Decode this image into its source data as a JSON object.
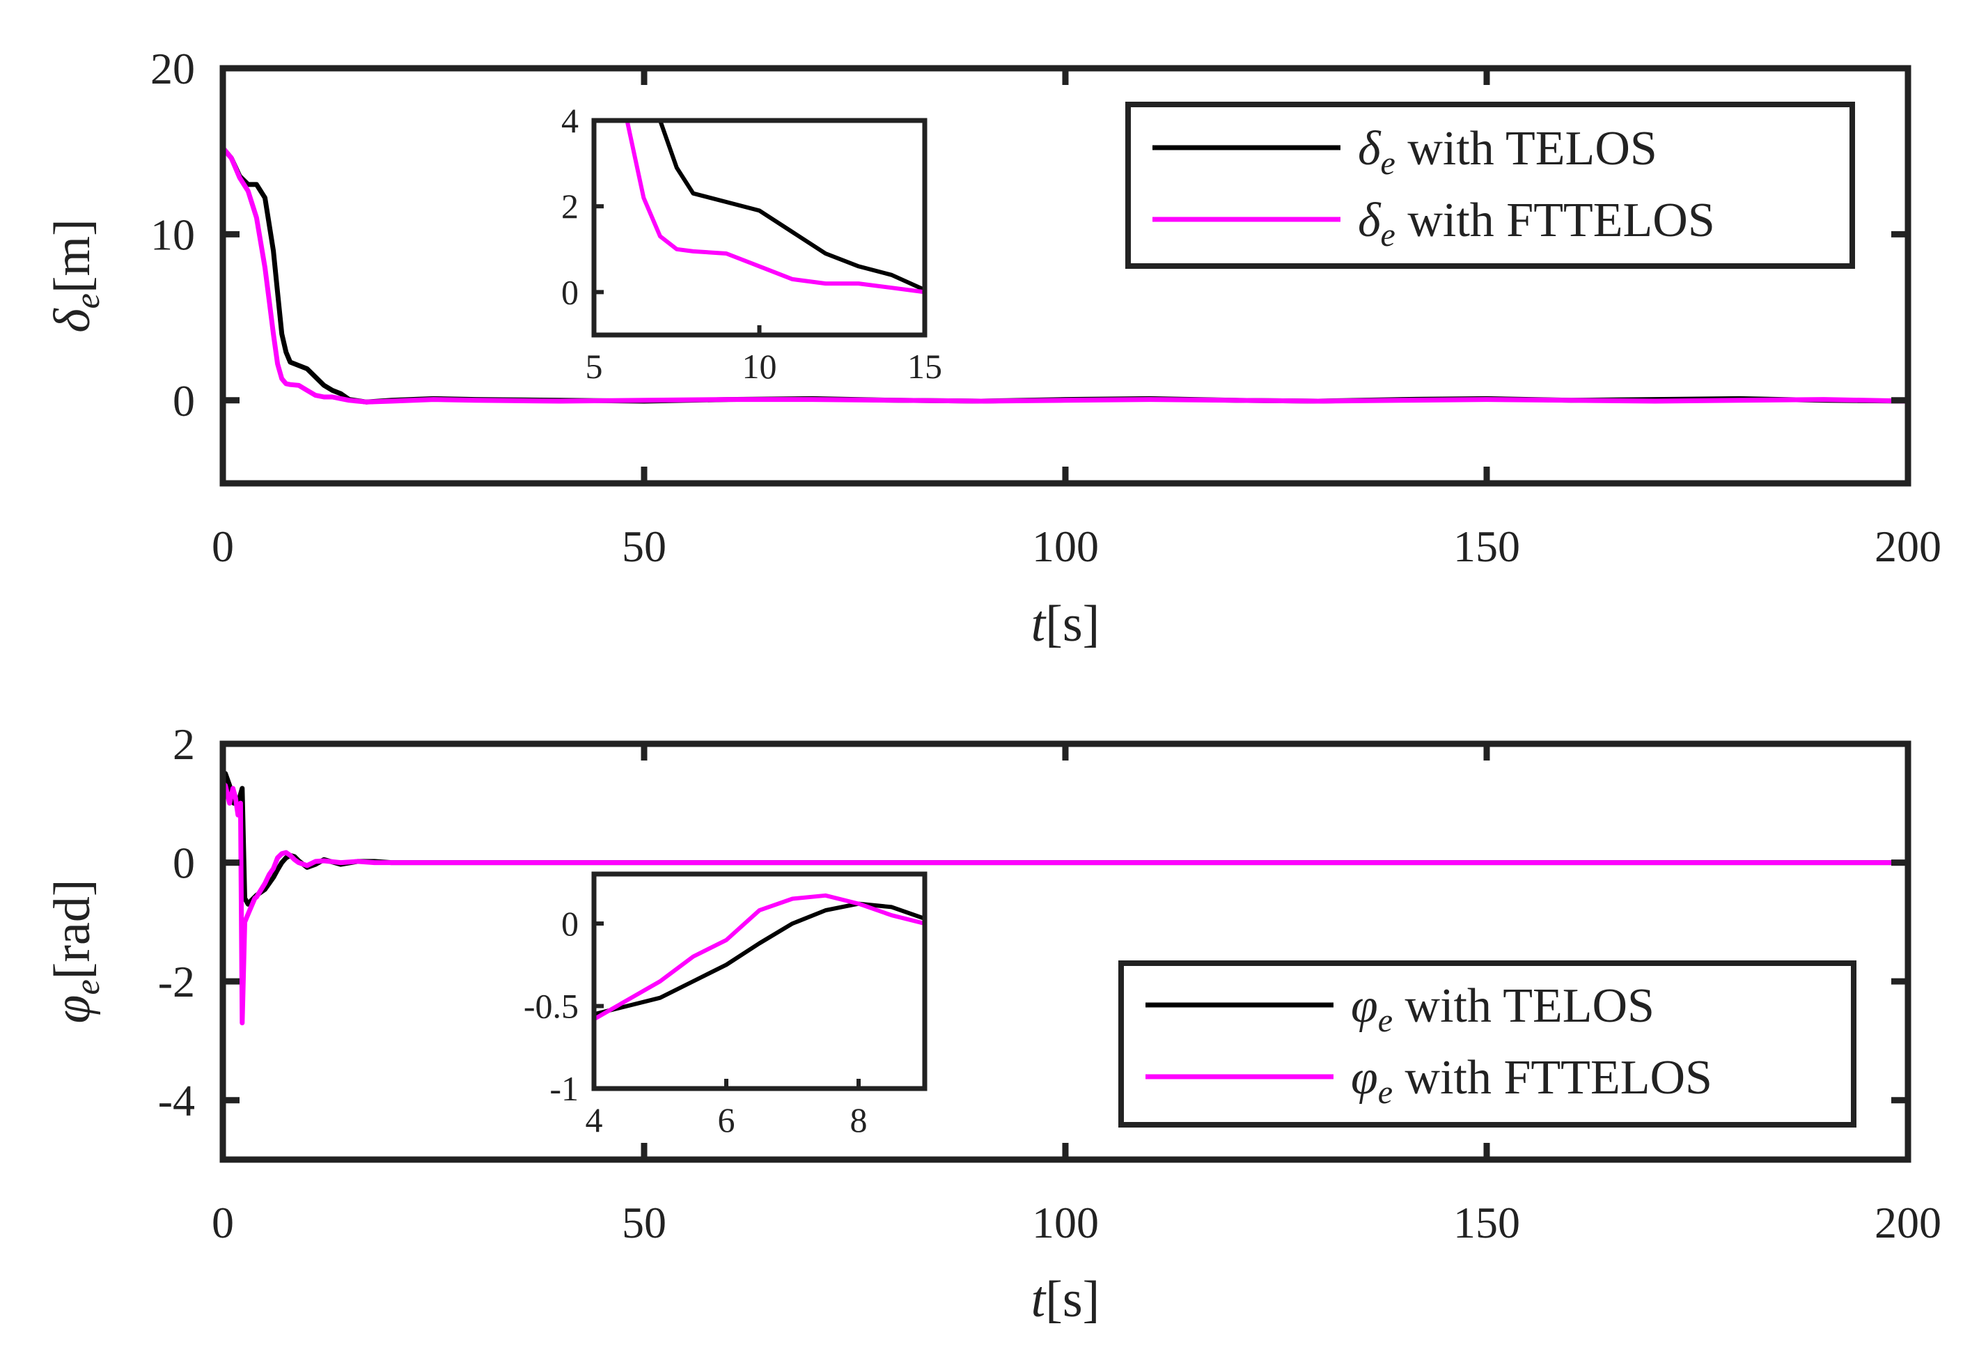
{
  "chart_data": [
    {
      "type": "line",
      "id": "top",
      "xlabel": "t[s]",
      "ylabel": "δe[m]",
      "xlim": [
        0,
        200
      ],
      "ylim": [
        -5,
        20
      ],
      "xticks": [
        0,
        50,
        100,
        150,
        200
      ],
      "xtick_labels": [
        "0",
        "50",
        "100",
        "150",
        "200"
      ],
      "yticks": [
        0,
        10,
        20
      ],
      "ytick_labels": [
        "0",
        "10",
        "20"
      ],
      "legend": {
        "position": "top-right",
        "entries": [
          "δe with TELOS",
          "δe with FTTELOS"
        ]
      },
      "series": [
        {
          "name": "δe with TELOS",
          "color": "#000000",
          "x": [
            0,
            1,
            2,
            3,
            4,
            5,
            6,
            6.5,
            7,
            7.5,
            8,
            9,
            10,
            11,
            12,
            13,
            14,
            15,
            17,
            20,
            25,
            30,
            40,
            50,
            60,
            70,
            80,
            90,
            100,
            110,
            120,
            130,
            140,
            150,
            160,
            170,
            180,
            190,
            200
          ],
          "values": [
            15.2,
            14.6,
            13.5,
            13.0,
            13.0,
            12.2,
            9.0,
            6.5,
            4.0,
            2.9,
            2.3,
            2.1,
            1.9,
            1.4,
            0.9,
            0.6,
            0.4,
            0.05,
            -0.1,
            0.0,
            0.1,
            0.05,
            0.0,
            -0.05,
            0.05,
            0.1,
            0.0,
            -0.05,
            0.05,
            0.1,
            0.0,
            -0.05,
            0.05,
            0.1,
            0.0,
            0.05,
            0.1,
            0.0,
            -0.05
          ]
        },
        {
          "name": "δe with FTTELOS",
          "color": "#ff00ff",
          "x": [
            0,
            1,
            2,
            3,
            4,
            5,
            5.5,
            6,
            6.5,
            7,
            7.5,
            8,
            9,
            10,
            11,
            12,
            13,
            14,
            15,
            17,
            20,
            25,
            30,
            40,
            50,
            60,
            70,
            80,
            90,
            100,
            110,
            120,
            130,
            140,
            150,
            160,
            170,
            180,
            190,
            200
          ],
          "values": [
            15.2,
            14.6,
            13.4,
            12.6,
            11.0,
            8.0,
            6.0,
            4.0,
            2.2,
            1.3,
            1.0,
            0.95,
            0.9,
            0.6,
            0.3,
            0.2,
            0.2,
            0.1,
            0.0,
            -0.1,
            -0.05,
            0.05,
            0.0,
            -0.05,
            0.0,
            0.05,
            0.05,
            0.0,
            -0.05,
            0.0,
            0.05,
            0.0,
            -0.05,
            0.0,
            0.05,
            0.0,
            -0.05,
            0.0,
            0.05,
            -0.05
          ]
        }
      ],
      "inset": {
        "xlim": [
          5,
          15
        ],
        "ylim": [
          -1,
          4
        ],
        "xticks": [
          5,
          10,
          15
        ],
        "xtick_labels": [
          "5",
          "10",
          "15"
        ],
        "yticks": [
          0,
          2,
          4
        ],
        "ytick_labels": [
          "0",
          "2",
          "4"
        ]
      }
    },
    {
      "type": "line",
      "id": "bottom",
      "xlabel": "t[s]",
      "ylabel": "φe[rad]",
      "xlim": [
        0,
        200
      ],
      "ylim": [
        -5,
        2
      ],
      "xticks": [
        0,
        50,
        100,
        150,
        200
      ],
      "xtick_labels": [
        "0",
        "50",
        "100",
        "150",
        "200"
      ],
      "yticks": [
        -4,
        -2,
        0,
        2
      ],
      "ytick_labels": [
        "-4",
        "-2",
        "0",
        "2"
      ],
      "legend": {
        "position": "bottom-right",
        "entries": [
          "φe with TELOS",
          "φe with FTTELOS"
        ]
      },
      "series": [
        {
          "name": "φe with TELOS",
          "color": "#000000",
          "x": [
            0,
            0.3,
            0.8,
            1.3,
            1.7,
            2.0,
            2.3,
            2.6,
            3.0,
            3.3,
            4,
            5,
            5.5,
            6,
            6.5,
            7,
            7.5,
            8,
            8.5,
            9,
            10,
            11,
            12,
            14,
            16,
            18,
            20,
            25,
            30,
            40,
            50,
            100,
            150,
            200
          ],
          "values": [
            1.4,
            1.5,
            1.3,
            1.0,
            1.05,
            1.1,
            1.25,
            -0.6,
            -0.7,
            -0.65,
            -0.55,
            -0.45,
            -0.35,
            -0.25,
            -0.12,
            0.0,
            0.08,
            0.12,
            0.1,
            0.03,
            -0.08,
            -0.03,
            0.05,
            -0.03,
            0.02,
            0.02,
            0.0,
            0.0,
            0.0,
            0.0,
            0.0,
            0.0,
            0.0,
            0.0
          ]
        },
        {
          "name": "φe with FTTELOS",
          "color": "#ff00ff",
          "x": [
            0,
            0.3,
            0.8,
            1.2,
            1.5,
            1.8,
            2.1,
            2.3,
            2.6,
            2.9,
            3.2,
            3.8,
            4,
            5,
            5.5,
            6,
            6.5,
            7,
            7.5,
            8,
            8.5,
            9,
            10,
            11,
            12,
            14,
            16,
            18,
            20,
            25,
            30,
            40,
            50,
            100,
            150,
            200
          ],
          "values": [
            1.2,
            1.3,
            1.0,
            1.25,
            1.1,
            0.8,
            1.0,
            -2.7,
            -1.0,
            -0.9,
            -0.8,
            -0.6,
            -0.58,
            -0.35,
            -0.2,
            -0.1,
            0.08,
            0.15,
            0.17,
            0.12,
            0.05,
            0.0,
            -0.05,
            0.02,
            0.03,
            0.0,
            0.02,
            0.0,
            0.0,
            0.0,
            0.0,
            0.0,
            0.0,
            0.0,
            0.0,
            0.0
          ]
        }
      ],
      "inset": {
        "xlim": [
          4,
          9
        ],
        "ylim": [
          -1,
          0.3
        ],
        "xticks": [
          4,
          6,
          8
        ],
        "xtick_labels": [
          "4",
          "6",
          "8"
        ],
        "yticks": [
          -1,
          -0.5,
          0
        ],
        "ytick_labels": [
          "-1",
          "-0.5",
          "0"
        ]
      }
    }
  ]
}
